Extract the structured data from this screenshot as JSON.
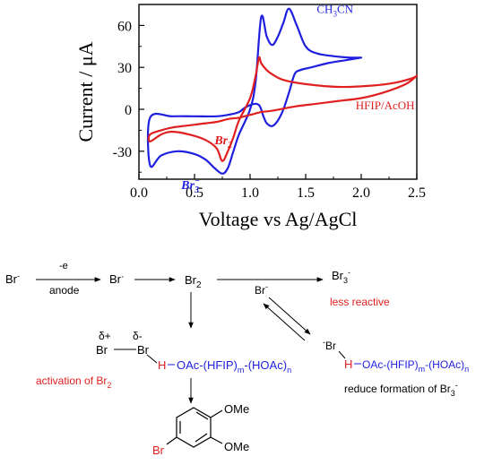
{
  "colors": {
    "ch3cn": "#1f1fe0",
    "hfip": "#e02020",
    "axis": "#000000",
    "text": "#000000",
    "highlight_red": "#e02020",
    "highlight_blue": "#1f1fe0"
  },
  "chart_data": {
    "type": "line",
    "xlabel": "Voltage vs Ag/AgCl",
    "ylabel": "Current / μA",
    "xlim": [
      0.0,
      2.5
    ],
    "ylim": [
      -50,
      75
    ],
    "xticks": [
      "0.0",
      "0.5",
      "1.0",
      "1.5",
      "2.0",
      "2.5"
    ],
    "yticks": [
      "-30",
      "0",
      "30",
      "60"
    ],
    "grid": false,
    "series": [
      {
        "name": "CH3CN",
        "label_parts": [
          "CH",
          "3",
          "CN"
        ],
        "color": "#1f1fe0",
        "x": [
          2.0,
          1.85,
          1.7,
          1.55,
          1.45,
          1.4,
          1.35,
          1.3,
          1.25,
          1.2,
          1.15,
          1.12,
          1.1,
          1.08,
          1.05,
          1.0,
          0.95,
          0.9,
          0.8,
          0.7,
          0.5,
          0.3,
          0.1,
          0.1,
          0.2,
          0.35,
          0.5,
          0.6,
          0.68,
          0.75,
          0.8,
          0.85,
          0.9,
          1.0,
          1.05,
          1.1,
          1.15,
          1.2,
          1.25,
          1.3,
          1.35,
          1.42,
          1.5,
          1.6,
          1.75,
          1.9,
          2.0
        ],
        "y": [
          37,
          35,
          33,
          30,
          28,
          25,
          12,
          0,
          -8,
          -12,
          -10,
          -5,
          0,
          3,
          4,
          3,
          1,
          -2,
          -4,
          -5,
          -5,
          -5,
          -6,
          -40,
          -33,
          -30,
          -32,
          -36,
          -42,
          -46,
          -42,
          -30,
          -18,
          0,
          20,
          66,
          52,
          46,
          52,
          62,
          72,
          60,
          45,
          40,
          38,
          37,
          37
        ]
      },
      {
        "name": "HFIP/AcOH",
        "label_parts": [
          "HFIP/AcOH"
        ],
        "color": "#e02020",
        "x": [
          2.5,
          2.4,
          2.2,
          2.0,
          1.8,
          1.6,
          1.4,
          1.2,
          1.1,
          1.0,
          0.9,
          0.8,
          0.7,
          0.6,
          0.5,
          0.4,
          0.3,
          0.2,
          0.1,
          0.1,
          0.2,
          0.3,
          0.45,
          0.6,
          0.7,
          0.75,
          0.8,
          0.85,
          0.9,
          1.0,
          1.05,
          1.08,
          1.1,
          1.15,
          1.2,
          1.3,
          1.5,
          1.8,
          2.1,
          2.3,
          2.45,
          2.5
        ],
        "y": [
          24,
          18,
          12,
          8,
          6,
          4,
          2,
          -1,
          -2,
          -4,
          -6,
          -7,
          -9,
          -10,
          -11,
          -12,
          -13,
          -15,
          -18,
          -23,
          -18,
          -16,
          -18,
          -22,
          -28,
          -37,
          -30,
          -20,
          -8,
          8,
          24,
          37,
          33,
          28,
          25,
          21,
          18,
          16,
          17,
          19,
          22,
          24
        ]
      }
    ],
    "annotations": [
      {
        "text": "Br",
        "sub": "2",
        "sup": "",
        "color": "#e02020",
        "x": 0.68,
        "y": -25
      },
      {
        "text": "Br",
        "sub": "3",
        "sup": "−",
        "color": "#1f1fe0",
        "x": 0.38,
        "y": -57
      }
    ]
  },
  "scheme": {
    "br_minus": "Br",
    "br_minus_sup": "-",
    "oxidation_above": "-e",
    "oxidation_below": "anode",
    "br_radical": "Br",
    "br_radical_sup": "·",
    "br2": "Br",
    "br2_sub": "2",
    "br_minus_arrow": "Br",
    "br_minus_arrow_sup": "-",
    "br3": "Br",
    "br3_sub": "3",
    "br3_sup": "-",
    "less_reactive": "less reactive",
    "delta_plus": "δ+",
    "delta_minus": "δ-",
    "br_left": "Br",
    "br_right": "Br",
    "h_left": "H",
    "hbond_left": "OAc-(HFIP)",
    "m_sub": "m",
    "hoac": "-(HOAc)",
    "n_sub": "n",
    "activation": "activation of Br",
    "activation_sub": "2",
    "br_minus_right": "Br",
    "br_minus_right_sup": "-",
    "h_right": "H",
    "hbond_right": "OAc-(HFIP)",
    "reduce": "reduce formation of Br",
    "reduce_sub": "3",
    "reduce_sup": "-",
    "product_br": "Br",
    "ome_top": "OMe",
    "ome_bottom": "OMe"
  }
}
